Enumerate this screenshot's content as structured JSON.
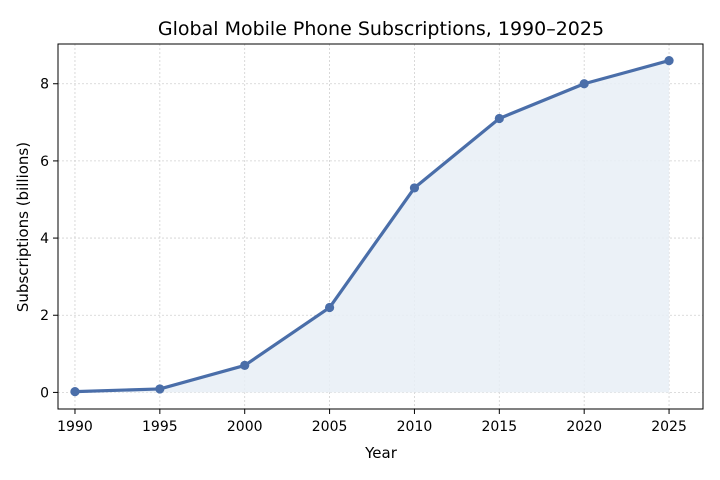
{
  "chart_data": {
    "type": "line",
    "title": "Global Mobile Phone Subscriptions, 1990–2025",
    "xlabel": "Year",
    "ylabel": "Subscriptions (billions)",
    "x": [
      1990,
      1995,
      2000,
      2005,
      2010,
      2015,
      2020,
      2025
    ],
    "series": [
      {
        "values": [
          0.02,
          0.09,
          0.7,
          2.2,
          5.3,
          7.1,
          8.0,
          8.6
        ]
      }
    ],
    "xticks": [
      "1990",
      "1995",
      "2000",
      "2005",
      "2010",
      "2015",
      "2020",
      "2025"
    ],
    "yticks": [
      "0",
      "2",
      "4",
      "6",
      "8"
    ],
    "xlim": [
      1989,
      2027
    ],
    "ylim": [
      -0.43,
      9.03
    ],
    "grid": true,
    "area_fill": true,
    "colors": {
      "line": "#4a6ea9",
      "fill": "#e8eef6"
    }
  }
}
